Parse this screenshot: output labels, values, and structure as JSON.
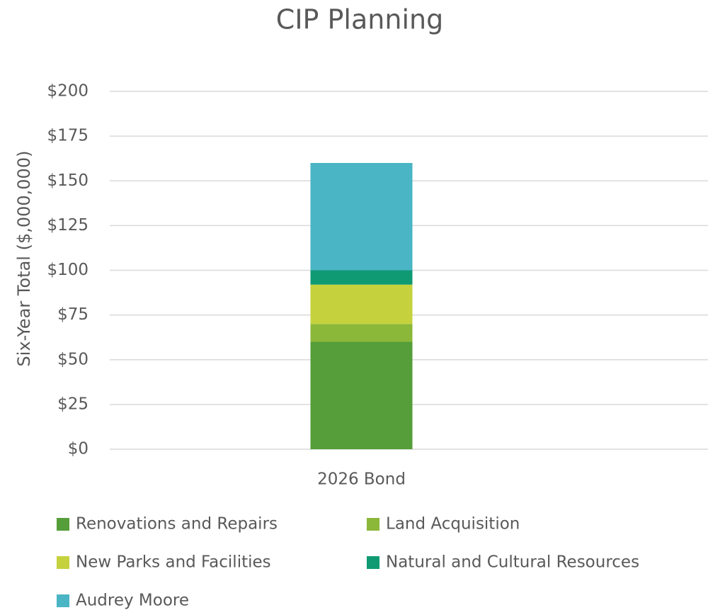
{
  "chart_data": {
    "type": "stacked_bar",
    "title": "CIP Planning",
    "y_label": "Six-Year Total ($,000,000)",
    "categories": [
      "2026 Bond"
    ],
    "series": [
      {
        "name": "Renovations and Repairs",
        "color": "#559e3a",
        "values": [
          60
        ]
      },
      {
        "name": "Land Acquisition",
        "color": "#8cb83a",
        "values": [
          10
        ]
      },
      {
        "name": "New Parks and Facilities",
        "color": "#c5d13d",
        "values": [
          22
        ]
      },
      {
        "name": "Natural and Cultural Resources",
        "color": "#0f9a74",
        "values": [
          8
        ]
      },
      {
        "name": "Audrey Moore",
        "color": "#4ab5c4",
        "values": [
          60
        ]
      }
    ],
    "ylim": [
      0,
      200
    ],
    "yticks": [
      {
        "value": 0,
        "label": "$0"
      },
      {
        "value": 25,
        "label": "$25"
      },
      {
        "value": 50,
        "label": "$50"
      },
      {
        "value": 75,
        "label": "$75"
      },
      {
        "value": 100,
        "label": "$100"
      },
      {
        "value": 125,
        "label": "$125"
      },
      {
        "value": 150,
        "label": "$150"
      },
      {
        "value": 175,
        "label": "$175"
      },
      {
        "value": 200,
        "label": "$200"
      }
    ],
    "grid": true
  }
}
